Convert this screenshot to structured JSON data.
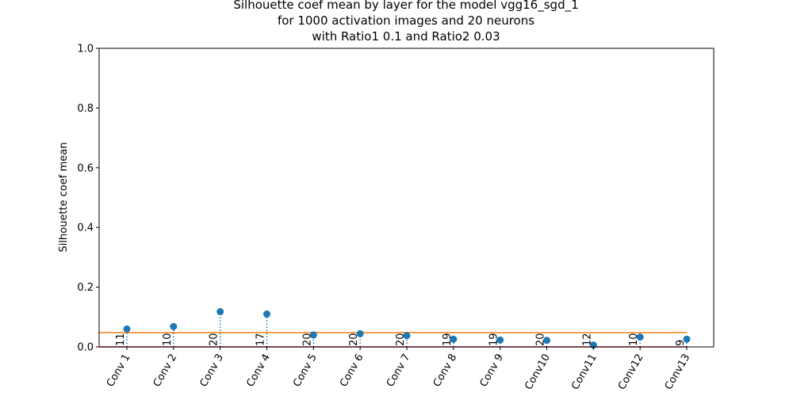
{
  "chart_data": {
    "type": "stem",
    "title_lines": [
      "Silhouette coef mean by layer for the model vgg16_sgd_1",
      "for 1000 activation images and 20 neurons",
      "with Ratio1 0.1 and Ratio2 0.03"
    ],
    "xlabel": "",
    "ylabel": "Silhouette coef mean",
    "ylim": [
      0,
      1.0
    ],
    "yticks": [
      "0.0",
      "0.2",
      "0.4",
      "0.6",
      "0.8",
      "1.0"
    ],
    "categories": [
      "Conv 1",
      "Conv 2",
      "Conv 3",
      "Conv 4",
      "Conv 5",
      "Conv 6",
      "Conv 7",
      "Conv 8",
      "Conv 9",
      "Conv10",
      "Conv11",
      "Conv12",
      "Conv13"
    ],
    "values": [
      0.06,
      0.068,
      0.118,
      0.11,
      0.04,
      0.044,
      0.038,
      0.026,
      0.023,
      0.022,
      0.006,
      0.033,
      0.026
    ],
    "counts": [
      "11",
      "10",
      "20",
      "17",
      "20",
      "20",
      "20",
      "19",
      "19",
      "20",
      "12",
      "10",
      "9"
    ],
    "reference_lines": [
      {
        "value": 0.048,
        "color": "#ff7f0e"
      },
      {
        "value": 0.0,
        "color": "#d62728"
      }
    ],
    "colors": {
      "stem": "#1f77b4",
      "marker": "#1f77b4"
    }
  }
}
